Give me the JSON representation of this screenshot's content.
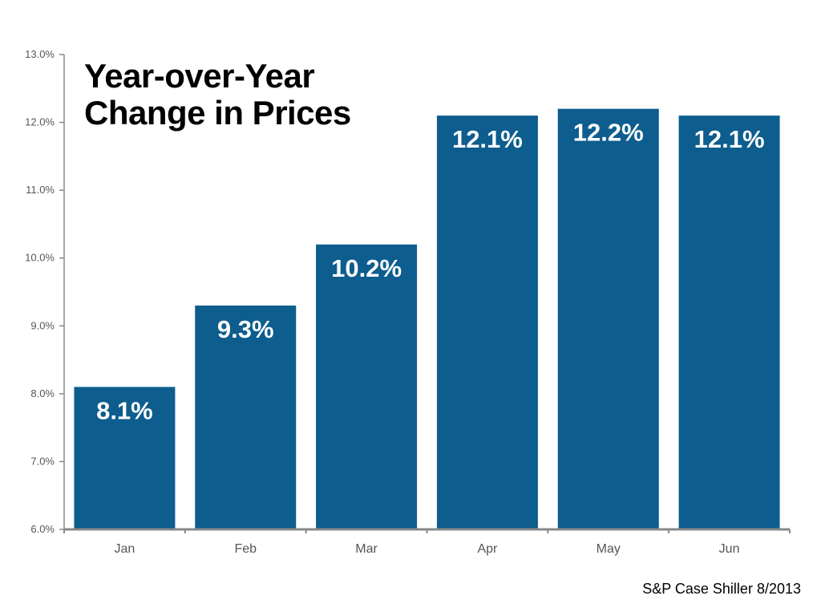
{
  "chart_data": {
    "type": "bar",
    "title_lines": [
      "Year-over-Year",
      "Change in Prices"
    ],
    "categories": [
      "Jan",
      "Feb",
      "Mar",
      "Apr",
      "May",
      "Jun"
    ],
    "values": [
      8.1,
      9.3,
      10.2,
      12.1,
      12.2,
      12.1
    ],
    "data_labels": [
      "8.1%",
      "9.3%",
      "10.2%",
      "12.1%",
      "12.2%",
      "12.1%"
    ],
    "ylim": [
      6.0,
      13.0
    ],
    "yticks": [
      6.0,
      7.0,
      8.0,
      9.0,
      10.0,
      11.0,
      12.0,
      13.0
    ],
    "ytick_labels": [
      "6.0%",
      "7.0%",
      "8.0%",
      "9.0%",
      "10.0%",
      "11.0%",
      "12.0%",
      "13.0%"
    ],
    "xlabel": "",
    "ylabel": "",
    "grid": false,
    "legend": "none",
    "bar_color": "#0d5d8e",
    "axis_color": "#888888"
  },
  "source": "S&P Case Shiller 8/2013"
}
